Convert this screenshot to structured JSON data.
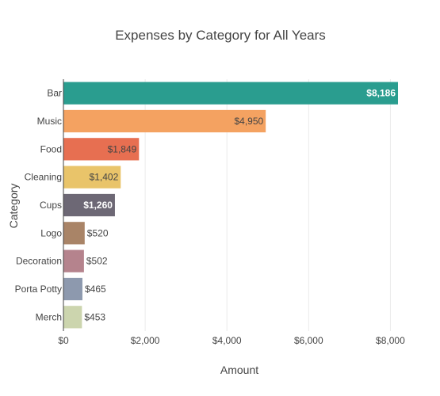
{
  "chart_data": {
    "type": "bar",
    "orientation": "horizontal",
    "title": "Expenses by Category for All Years",
    "xlabel": "Amount",
    "ylabel": "Category",
    "categories": [
      "Bar",
      "Music",
      "Food",
      "Cleaning",
      "Cups",
      "Logo",
      "Decoration",
      "Porta Potty",
      "Merch"
    ],
    "values": [
      8186,
      4950,
      1849,
      1402,
      1260,
      520,
      502,
      465,
      453
    ],
    "value_labels": [
      "$8,186",
      "$4,950",
      "$1,849",
      "$1,402",
      "$1,260",
      "$520",
      "$502",
      "$465",
      "$453"
    ],
    "colors": [
      "#2a9d8f",
      "#f4a261",
      "#e76f51",
      "#e9c46a",
      "#6d6875",
      "#a98467",
      "#b5838d",
      "#8d99ae",
      "#ccd5ae"
    ],
    "label_colors": [
      "#ffffff",
      "#444444",
      "#444444",
      "#444444",
      "#ffffff",
      "#444444",
      "#444444",
      "#444444",
      "#444444"
    ],
    "label_bold": [
      true,
      false,
      false,
      false,
      true,
      false,
      false,
      false,
      false
    ],
    "x_ticks": [
      0,
      2000,
      4000,
      6000,
      8000
    ],
    "x_tick_labels": [
      "$0",
      "$2,000",
      "$4,000",
      "$6,000",
      "$8,000"
    ],
    "xlim": [
      0,
      8186
    ],
    "grid": true,
    "legend": false
  }
}
